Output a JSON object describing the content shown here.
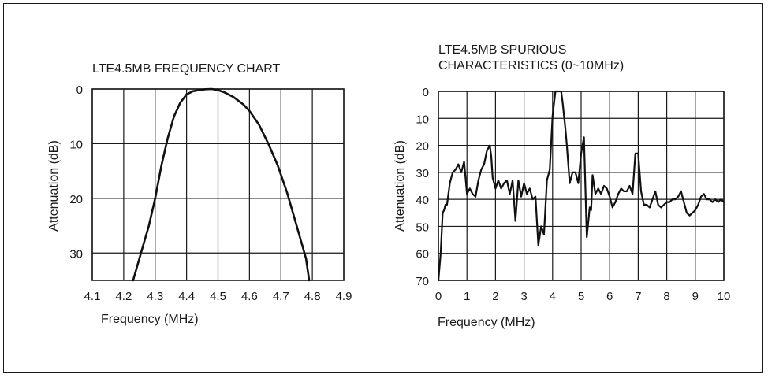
{
  "chart_data": [
    {
      "type": "line",
      "title": "LTE4.5MB FREQUENCY CHART",
      "xlabel": "Frequency (MHz)",
      "ylabel": "Attenuation (dB)",
      "xlim": [
        4.1,
        4.9
      ],
      "ylim": [
        0,
        35
      ],
      "y_inverted": true,
      "grid": true,
      "x_ticks": [
        "4.1",
        "4.2",
        "4.3",
        "4.4",
        "4.5",
        "4.6",
        "4.7",
        "4.8",
        "4.9"
      ],
      "y_ticks": [
        "0",
        "10",
        "20",
        "30"
      ],
      "x_tick_values": [
        4.1,
        4.2,
        4.3,
        4.4,
        4.5,
        4.6,
        4.7,
        4.8,
        4.9
      ],
      "y_tick_values": [
        0,
        10,
        20,
        30
      ],
      "series": [
        {
          "x": [
            4.23,
            4.25,
            4.28,
            4.3,
            4.32,
            4.34,
            4.36,
            4.38,
            4.4,
            4.42,
            4.44,
            4.46,
            4.48,
            4.5,
            4.52,
            4.55,
            4.58,
            4.6,
            4.63,
            4.66,
            4.69,
            4.72,
            4.75,
            4.78,
            4.79
          ],
          "y": [
            35,
            31,
            25,
            20,
            14,
            9,
            5,
            2.5,
            1,
            0.4,
            0.2,
            0.05,
            0,
            0.2,
            0.6,
            1.5,
            2.8,
            4,
            6.5,
            10,
            14,
            19,
            25,
            31,
            35
          ]
        }
      ]
    },
    {
      "type": "line",
      "title": "LTE4.5MB SPURIOUS\nCHARACTERISTICS (0~10MHz)",
      "xlabel": "Frequency (MHz)",
      "ylabel": "Attenuation (dB)",
      "xlim": [
        0,
        10
      ],
      "ylim": [
        0,
        70
      ],
      "y_inverted": true,
      "grid": true,
      "x_ticks": [
        "0",
        "1",
        "2",
        "3",
        "4",
        "5",
        "6",
        "7",
        "8",
        "9",
        "10"
      ],
      "y_ticks": [
        "0",
        "10",
        "20",
        "30",
        "40",
        "50",
        "60",
        "70"
      ],
      "x_tick_values": [
        0,
        1,
        2,
        3,
        4,
        5,
        6,
        7,
        8,
        9,
        10
      ],
      "y_tick_values": [
        0,
        10,
        20,
        30,
        40,
        50,
        60,
        70
      ],
      "series": [
        {
          "x": [
            0.0,
            0.08,
            0.15,
            0.2,
            0.25,
            0.3,
            0.4,
            0.5,
            0.6,
            0.7,
            0.8,
            0.9,
            1.0,
            1.1,
            1.2,
            1.3,
            1.4,
            1.5,
            1.6,
            1.7,
            1.8,
            1.85,
            1.9,
            2.0,
            2.1,
            2.2,
            2.3,
            2.4,
            2.5,
            2.6,
            2.7,
            2.8,
            2.9,
            3.0,
            3.1,
            3.2,
            3.3,
            3.4,
            3.5,
            3.6,
            3.7,
            3.8,
            3.9,
            4.0,
            4.1,
            4.2,
            4.3,
            4.35,
            4.4,
            4.45,
            4.5,
            4.6,
            4.7,
            4.8,
            4.9,
            5.0,
            5.1,
            5.2,
            5.3,
            5.35,
            5.4,
            5.5,
            5.6,
            5.7,
            5.8,
            5.9,
            6.0,
            6.1,
            6.2,
            6.3,
            6.4,
            6.5,
            6.6,
            6.7,
            6.8,
            6.9,
            7.0,
            7.1,
            7.2,
            7.3,
            7.4,
            7.5,
            7.6,
            7.7,
            7.8,
            7.9,
            8.0,
            8.1,
            8.2,
            8.3,
            8.4,
            8.5,
            8.6,
            8.7,
            8.8,
            8.9,
            9.0,
            9.1,
            9.2,
            9.3,
            9.4,
            9.5,
            9.6,
            9.7,
            9.8,
            9.9,
            10.0
          ],
          "y": [
            70,
            60,
            45,
            44,
            42,
            42,
            34,
            30,
            29,
            27,
            30,
            26,
            38,
            36,
            38,
            39,
            33,
            29,
            27,
            22,
            20,
            24,
            32,
            36,
            33,
            36,
            34,
            33,
            38,
            33,
            48,
            33,
            39,
            34,
            38,
            36,
            40,
            39,
            57,
            50,
            53,
            33,
            29,
            9,
            0,
            0,
            0,
            4,
            9,
            14,
            20,
            34,
            30,
            30,
            34,
            23,
            17,
            54,
            43,
            44,
            31,
            38,
            36,
            38,
            35,
            36,
            39,
            43,
            41,
            38,
            36,
            37,
            37,
            35,
            38,
            23,
            23,
            37,
            42,
            42,
            43,
            40,
            37,
            42,
            43,
            42,
            41,
            41,
            40,
            40,
            39,
            37,
            41,
            45,
            46,
            45,
            44,
            42,
            39,
            38,
            40,
            40,
            41,
            40,
            41,
            40,
            41
          ]
        }
      ]
    }
  ]
}
